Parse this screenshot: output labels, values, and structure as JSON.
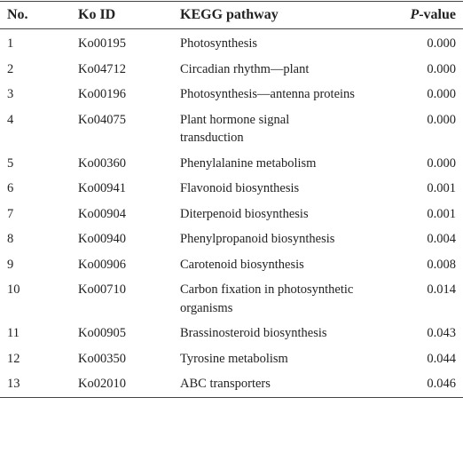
{
  "table": {
    "header": [
      "No.",
      "Ko ID",
      "KEGG pathway",
      [
        "P",
        "-value"
      ]
    ],
    "rows": [
      [
        "1",
        "Ko00195",
        "Photosynthesis",
        "0.000"
      ],
      [
        "2",
        "Ko04712",
        "Circadian rhythm—plant",
        "0.000"
      ],
      [
        "3",
        "Ko00196",
        "Photosynthesis—antenna proteins",
        "0.000"
      ],
      [
        "4",
        "Ko04075",
        "Plant hormone signal transduction",
        "0.000"
      ],
      [
        "5",
        "Ko00360",
        "Phenylalanine metabolism",
        "0.000"
      ],
      [
        "6",
        "Ko00941",
        "Flavonoid biosynthesis",
        "0.001"
      ],
      [
        "7",
        "Ko00904",
        "Diterpenoid biosynthesis",
        "0.001"
      ],
      [
        "8",
        "Ko00940",
        "Phenylpropanoid biosynthesis",
        "0.004"
      ],
      [
        "9",
        "Ko00906",
        "Carotenoid biosynthesis",
        "0.008"
      ],
      [
        "10",
        "Ko00710",
        "Carbon fixation in photosynthetic organisms",
        "0.014"
      ],
      [
        "11",
        "Ko00905",
        "Brassinosteroid biosynthesis",
        "0.043"
      ],
      [
        "12",
        "Ko00350",
        "Tyrosine metabolism",
        "0.044"
      ],
      [
        "13",
        "Ko02010",
        "ABC transporters",
        "0.046"
      ]
    ]
  }
}
